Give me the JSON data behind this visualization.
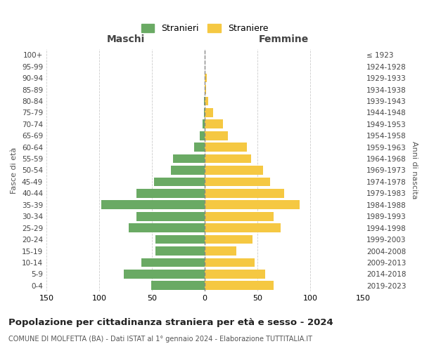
{
  "age_groups": [
    "0-4",
    "5-9",
    "10-14",
    "15-19",
    "20-24",
    "25-29",
    "30-34",
    "35-39",
    "40-44",
    "45-49",
    "50-54",
    "55-59",
    "60-64",
    "65-69",
    "70-74",
    "75-79",
    "80-84",
    "85-89",
    "90-94",
    "95-99",
    "100+"
  ],
  "birth_years": [
    "2019-2023",
    "2014-2018",
    "2009-2013",
    "2004-2008",
    "1999-2003",
    "1994-1998",
    "1989-1993",
    "1984-1988",
    "1979-1983",
    "1974-1978",
    "1969-1973",
    "1964-1968",
    "1959-1963",
    "1954-1958",
    "1949-1953",
    "1944-1948",
    "1939-1943",
    "1934-1938",
    "1929-1933",
    "1924-1928",
    "≤ 1923"
  ],
  "maschi": [
    51,
    77,
    60,
    47,
    47,
    72,
    65,
    98,
    65,
    48,
    32,
    30,
    10,
    5,
    2,
    1,
    1,
    0,
    0,
    0,
    0
  ],
  "femmine": [
    65,
    57,
    47,
    30,
    45,
    72,
    65,
    90,
    75,
    62,
    55,
    44,
    40,
    22,
    17,
    8,
    3,
    1,
    2,
    0,
    0
  ],
  "male_color": "#6aaa64",
  "female_color": "#f5c842",
  "title": "Popolazione per cittadinanza straniera per età e sesso - 2024",
  "subtitle": "COMUNE DI MOLFETTA (BA) - Dati ISTAT al 1° gennaio 2024 - Elaborazione TUTTITALIA.IT",
  "xlabel_left": "Maschi",
  "xlabel_right": "Femmine",
  "ylabel_left": "Fasce di età",
  "ylabel_right": "Anni di nascita",
  "legend_maschi": "Stranieri",
  "legend_femmine": "Straniere",
  "xlim": 150,
  "background_color": "#ffffff",
  "grid_color": "#cccccc"
}
